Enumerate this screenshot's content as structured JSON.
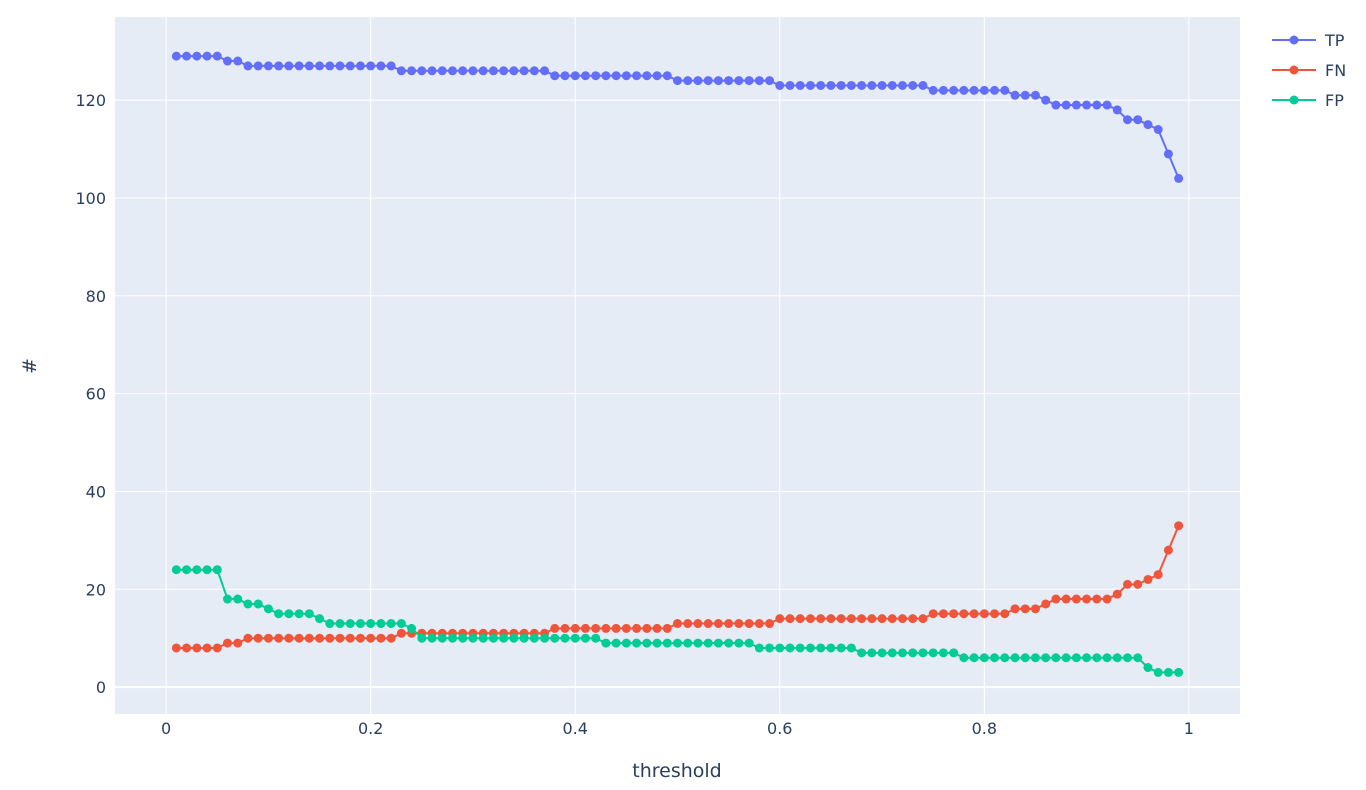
{
  "chart_data": {
    "type": "line",
    "title": "",
    "xlabel": "threshold",
    "ylabel": "#",
    "xlim": [
      -0.05,
      1.05
    ],
    "ylim": [
      -5.5,
      137
    ],
    "x_ticks": [
      0,
      0.2,
      0.4,
      0.6,
      0.8,
      1
    ],
    "x_tick_labels": [
      "0",
      "0.2",
      "0.4",
      "0.6",
      "0.8",
      "1"
    ],
    "y_ticks": [
      0,
      20,
      40,
      60,
      80,
      100,
      120
    ],
    "y_tick_labels": [
      "0",
      "20",
      "40",
      "60",
      "80",
      "100",
      "120"
    ],
    "grid": true,
    "legend_position": "top-right",
    "background_color": "#e5ecf6",
    "grid_color": "#ffffff",
    "x_start": 0.01,
    "x_step": 0.01,
    "series": [
      {
        "name": "TP",
        "color": "#636efa",
        "values": [
          129,
          129,
          129,
          129,
          129,
          128,
          128,
          127,
          127,
          127,
          127,
          127,
          127,
          127,
          127,
          127,
          127,
          127,
          127,
          127,
          127,
          127,
          126,
          126,
          126,
          126,
          126,
          126,
          126,
          126,
          126,
          126,
          126,
          126,
          126,
          126,
          126,
          125,
          125,
          125,
          125,
          125,
          125,
          125,
          125,
          125,
          125,
          125,
          125,
          124,
          124,
          124,
          124,
          124,
          124,
          124,
          124,
          124,
          124,
          123,
          123,
          123,
          123,
          123,
          123,
          123,
          123,
          123,
          123,
          123,
          123,
          123,
          123,
          123,
          122,
          122,
          122,
          122,
          122,
          122,
          122,
          122,
          121,
          121,
          121,
          120,
          119,
          119,
          119,
          119,
          119,
          119,
          118,
          116,
          116,
          115,
          114,
          109,
          104
        ]
      },
      {
        "name": "FN",
        "color": "#ef553b",
        "values": [
          8,
          8,
          8,
          8,
          8,
          9,
          9,
          10,
          10,
          10,
          10,
          10,
          10,
          10,
          10,
          10,
          10,
          10,
          10,
          10,
          10,
          10,
          11,
          11,
          11,
          11,
          11,
          11,
          11,
          11,
          11,
          11,
          11,
          11,
          11,
          11,
          11,
          12,
          12,
          12,
          12,
          12,
          12,
          12,
          12,
          12,
          12,
          12,
          12,
          13,
          13,
          13,
          13,
          13,
          13,
          13,
          13,
          13,
          13,
          14,
          14,
          14,
          14,
          14,
          14,
          14,
          14,
          14,
          14,
          14,
          14,
          14,
          14,
          14,
          15,
          15,
          15,
          15,
          15,
          15,
          15,
          15,
          16,
          16,
          16,
          17,
          18,
          18,
          18,
          18,
          18,
          18,
          19,
          21,
          21,
          22,
          23,
          28,
          33
        ]
      },
      {
        "name": "FP",
        "color": "#00cc96",
        "values": [
          24,
          24,
          24,
          24,
          24,
          18,
          18,
          17,
          17,
          16,
          15,
          15,
          15,
          15,
          14,
          13,
          13,
          13,
          13,
          13,
          13,
          13,
          13,
          12,
          10,
          10,
          10,
          10,
          10,
          10,
          10,
          10,
          10,
          10,
          10,
          10,
          10,
          10,
          10,
          10,
          10,
          10,
          9,
          9,
          9,
          9,
          9,
          9,
          9,
          9,
          9,
          9,
          9,
          9,
          9,
          9,
          9,
          8,
          8,
          8,
          8,
          8,
          8,
          8,
          8,
          8,
          8,
          7,
          7,
          7,
          7,
          7,
          7,
          7,
          7,
          7,
          7,
          6,
          6,
          6,
          6,
          6,
          6,
          6,
          6,
          6,
          6,
          6,
          6,
          6,
          6,
          6,
          6,
          6,
          6,
          4,
          3,
          3,
          3
        ]
      }
    ]
  }
}
